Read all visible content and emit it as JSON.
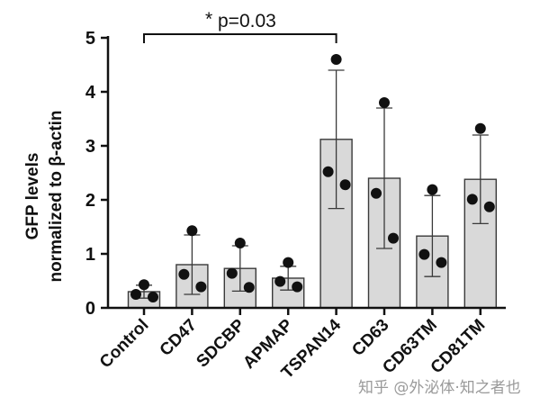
{
  "chart_data": {
    "type": "bar",
    "title": "",
    "xlabel": "",
    "ylabel_line1": "GFP levels",
    "ylabel_line2": "normalized to β-actin",
    "ylim": [
      0,
      5
    ],
    "yticks": [
      "0",
      "1",
      "2",
      "3",
      "4",
      "5"
    ],
    "categories": [
      "Control",
      "CD47",
      "SDCBP",
      "APMAP",
      "TSPAN14",
      "CD63",
      "CD63TM",
      "CD81TM"
    ],
    "values": [
      0.3,
      0.8,
      0.73,
      0.55,
      3.12,
      2.4,
      1.33,
      2.38
    ],
    "errors": [
      0.12,
      0.55,
      0.42,
      0.22,
      1.28,
      1.3,
      0.75,
      0.82
    ],
    "points": [
      [
        0.43,
        0.25,
        0.2
      ],
      [
        1.43,
        0.62,
        0.39
      ],
      [
        1.2,
        0.64,
        0.38
      ],
      [
        0.84,
        0.49,
        0.39
      ],
      [
        4.6,
        2.52,
        2.28
      ],
      [
        3.8,
        2.12,
        1.29
      ],
      [
        2.19,
        0.99,
        0.84
      ],
      [
        3.32,
        2.01,
        1.87
      ]
    ],
    "significance": {
      "from": "Control",
      "to": "TSPAN14",
      "asterisk": "*",
      "label": "p=0.03"
    },
    "colors": {
      "bar_fill": "#d9d9d9",
      "bar_stroke": "#3a3a3a",
      "point": "#111111",
      "axis": "#111111"
    }
  },
  "watermark": "知乎 @外泌体·知之者也"
}
